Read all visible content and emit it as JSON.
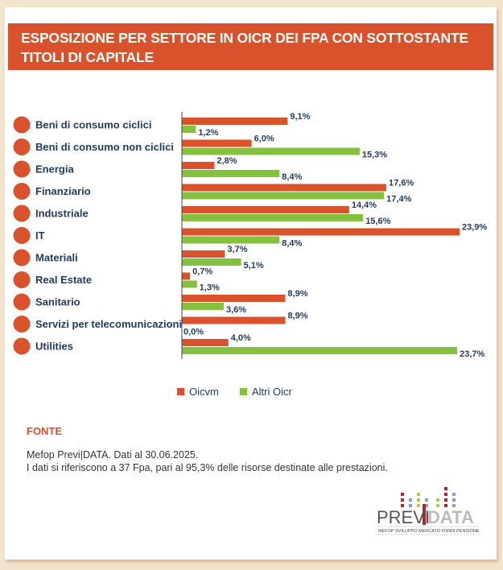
{
  "title": "ESPOSIZIONE PER SETTORE IN OICR DEI FPA CON SOTTOSTANTE TITOLI DI CAPITALE",
  "chart_data": {
    "type": "bar",
    "orientation": "horizontal",
    "categories": [
      "Beni di consumo ciclici",
      "Beni di consumo non ciclici",
      "Energia",
      "Finanziario",
      "Industriale",
      "IT",
      "Materiali",
      "Real Estate",
      "Sanitario",
      "Servizi per telecomunicazioni",
      "Utilities"
    ],
    "category_icons": [
      "recycle-icon",
      "no-recycle-icon",
      "lightbulb-icon",
      "piggy-bank-icon",
      "factory-icon",
      "mouse-icon",
      "truck-icon",
      "house-search-icon",
      "heart-icon",
      "phone-icon",
      "water-flame-icon"
    ],
    "series": [
      {
        "name": "Oicvm",
        "color": "#d9522b",
        "values": [
          9.1,
          6.0,
          2.8,
          17.6,
          14.4,
          23.9,
          3.7,
          0.7,
          8.9,
          8.9,
          4.0
        ],
        "labels": [
          "9,1%",
          "6,0%",
          "2,8%",
          "17,6%",
          "14,4%",
          "23,9%",
          "3,7%",
          "0,7%",
          "8,9%",
          "8,9%",
          "4,0%"
        ]
      },
      {
        "name": "Altri Oicr",
        "color": "#86c03f",
        "values": [
          1.2,
          15.3,
          8.4,
          17.4,
          15.6,
          8.4,
          5.1,
          1.3,
          3.6,
          0.0,
          23.7
        ],
        "labels": [
          "1,2%",
          "15,3%",
          "8,4%",
          "17,4%",
          "15,6%",
          "8,4%",
          "5,1%",
          "1,3%",
          "3,6%",
          "0,0%",
          "23,7%"
        ]
      }
    ],
    "xlim": [
      0,
      24
    ],
    "grid": false,
    "legend": "bottom"
  },
  "source": {
    "label": "FONTE",
    "line1": "Mefop Previ|DATA. Dati al 30.06.2025.",
    "line2": "I dati si riferiscono a 37 Fpa, pari al 95,3% delle risorse destinate alle prestazioni."
  },
  "logo": {
    "brand_left": "PREVI",
    "brand_right": "DATA",
    "tagline": "MEFOP SVILUPPO MERCATO FONDI PENSIONE"
  }
}
